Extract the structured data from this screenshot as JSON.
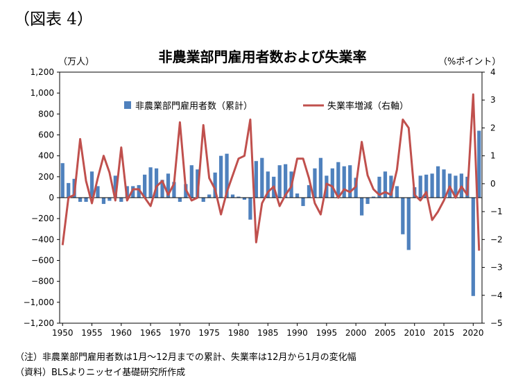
{
  "figure_label": "（図表 4）",
  "notes": [
    "（注）非農業部門雇用者数は1月～12月までの累計、失業率は12月から1月の変化幅",
    "（資料）BLSよりニッセイ基礎研究所作成"
  ],
  "chart_data": {
    "type": "bar+line",
    "title": "非農業部門雇用者数および失業率",
    "left_unit": "（万人）",
    "right_unit": "（%ポイント）",
    "ylim_left": [
      -1200,
      1200
    ],
    "ylim_right": [
      -5,
      4
    ],
    "yticks_left": [
      1200,
      1000,
      800,
      600,
      400,
      200,
      0,
      -200,
      -400,
      -600,
      -800,
      -1000,
      -1200
    ],
    "yticks_left_labels": [
      "1,200",
      "1,000",
      "800",
      "600",
      "400",
      "200",
      "0",
      "−200",
      "−400",
      "−600",
      "−800",
      "−1,000",
      "−1,200"
    ],
    "yticks_right": [
      4,
      3,
      2,
      1,
      0,
      -1,
      -2,
      -3,
      -4,
      -5
    ],
    "yticks_right_labels": [
      "4",
      "3",
      "2",
      "1",
      "0",
      "−1",
      "−2",
      "−3",
      "−4",
      "−5"
    ],
    "xticks": [
      "1950",
      "1955",
      "1960",
      "1965",
      "1970",
      "1975",
      "1980",
      "1985",
      "1990",
      "1995",
      "2000",
      "2005",
      "2010",
      "2015",
      "2020"
    ],
    "legend_position": "top-center",
    "grid": false,
    "colors": {
      "bars": "#4f81bd",
      "line": "#c0504d"
    },
    "x": [
      1950,
      1951,
      1952,
      1953,
      1954,
      1955,
      1956,
      1957,
      1958,
      1959,
      1960,
      1961,
      1962,
      1963,
      1964,
      1965,
      1966,
      1967,
      1968,
      1969,
      1970,
      1971,
      1972,
      1973,
      1974,
      1975,
      1976,
      1977,
      1978,
      1979,
      1980,
      1981,
      1982,
      1983,
      1984,
      1985,
      1986,
      1987,
      1988,
      1989,
      1990,
      1991,
      1992,
      1993,
      1994,
      1995,
      1996,
      1997,
      1998,
      1999,
      2000,
      2001,
      2002,
      2003,
      2004,
      2005,
      2006,
      2007,
      2008,
      2009,
      2010,
      2011,
      2012,
      2013,
      2014,
      2015,
      2016,
      2017,
      2018,
      2019,
      2020,
      2021
    ],
    "series": [
      {
        "name": "非農業部門雇用者数（累計）",
        "type": "bar",
        "axis": "left",
        "values": [
          330,
          140,
          180,
          -40,
          -40,
          250,
          110,
          -60,
          -30,
          210,
          -40,
          110,
          110,
          120,
          220,
          290,
          280,
          170,
          230,
          150,
          -40,
          130,
          310,
          270,
          -40,
          30,
          240,
          400,
          420,
          30,
          10,
          -20,
          -210,
          350,
          380,
          250,
          200,
          310,
          320,
          250,
          40,
          -80,
          120,
          280,
          380,
          210,
          280,
          340,
          300,
          310,
          190,
          -170,
          -60,
          10,
          200,
          250,
          210,
          110,
          -350,
          -500,
          100,
          210,
          220,
          230,
          300,
          270,
          230,
          210,
          230,
          200,
          -940,
          640
        ]
      },
      {
        "name": "失業率増減（右軸）",
        "type": "line",
        "axis": "right",
        "values": [
          -2.2,
          -0.5,
          -0.4,
          1.6,
          0.1,
          -0.7,
          0.2,
          1.0,
          0.4,
          -0.6,
          1.3,
          -0.6,
          -0.2,
          -0.2,
          -0.5,
          -0.8,
          -0.1,
          0.1,
          -0.4,
          0.0,
          2.2,
          -0.2,
          -0.6,
          -0.5,
          2.1,
          0.2,
          -0.2,
          -1.1,
          -0.3,
          0.3,
          0.9,
          1.0,
          2.3,
          -2.1,
          -0.7,
          -0.3,
          -0.1,
          -0.8,
          -0.4,
          -0.1,
          0.9,
          0.9,
          0.2,
          -0.7,
          -1.1,
          0.0,
          -0.1,
          -0.5,
          -0.2,
          -0.3,
          -0.1,
          1.5,
          0.3,
          -0.2,
          -0.4,
          -0.3,
          -0.4,
          0.5,
          2.3,
          2.0,
          -0.4,
          -0.6,
          -0.3,
          -1.3,
          -1.0,
          -0.6,
          -0.1,
          -0.5,
          -0.1,
          -0.4,
          3.2,
          -2.4
        ]
      }
    ]
  }
}
